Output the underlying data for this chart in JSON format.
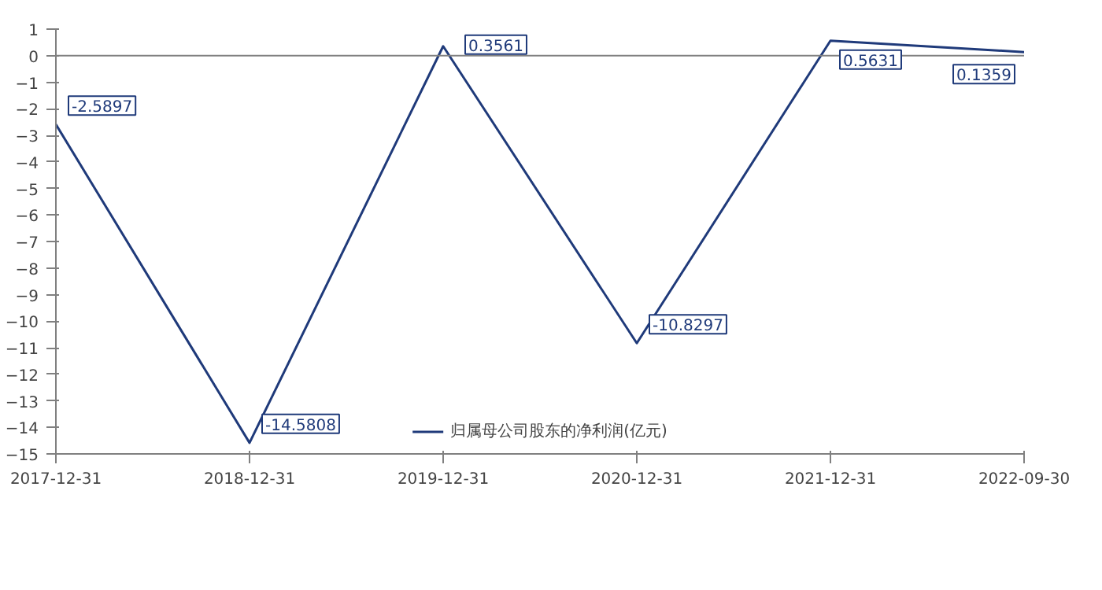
{
  "chart_data": {
    "type": "line",
    "categories": [
      "2017-12-31",
      "2018-12-31",
      "2019-12-31",
      "2020-12-31",
      "2021-12-31",
      "2022-09-30"
    ],
    "series": [
      {
        "name": "归属母公司股东的净利润(亿元)",
        "color": "#1f3a7a",
        "values": [
          -2.5897,
          -14.5808,
          0.3561,
          -10.8297,
          0.5631,
          0.1359
        ]
      }
    ],
    "ylim": [
      -15,
      1
    ],
    "yticks": [
      -15,
      -14,
      -13,
      -12,
      -11,
      -10,
      -9,
      -8,
      -7,
      -6,
      -5,
      -4,
      -3,
      -2,
      -1,
      0,
      1
    ],
    "ref_lines": [
      {
        "axis": "y",
        "value": 0,
        "color": "#808080"
      }
    ],
    "data_labels": true,
    "grid": false,
    "legend": "bottom",
    "marker": "none"
  }
}
